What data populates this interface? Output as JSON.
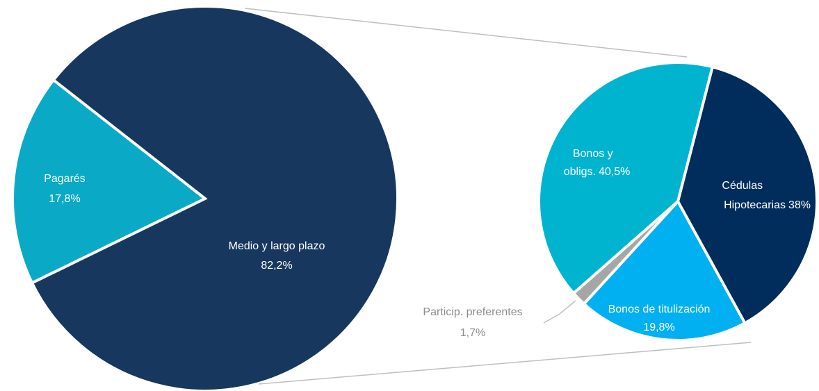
{
  "chart_data": [
    {
      "type": "pie",
      "categories": [
        "Pagarés",
        "Medio y largo plazo"
      ],
      "values": [
        17.8,
        82.2
      ],
      "value_labels": [
        "17,8%",
        "82,2%"
      ],
      "colors": [
        "#0aaac6",
        "#17375e"
      ]
    },
    {
      "type": "pie",
      "categories": [
        "Cédulas Hipotecarias",
        "Bonos de titulización",
        "Particip. preferentes",
        "Bonos y obligs."
      ],
      "values": [
        38,
        19.8,
        1.7,
        40.5
      ],
      "value_labels": [
        "38%",
        "19,8%",
        "1,7%",
        "40,5%"
      ],
      "colors": [
        "#002d5c",
        "#00b0f0",
        "#a6a6a6",
        "#00b4d0"
      ]
    }
  ]
}
